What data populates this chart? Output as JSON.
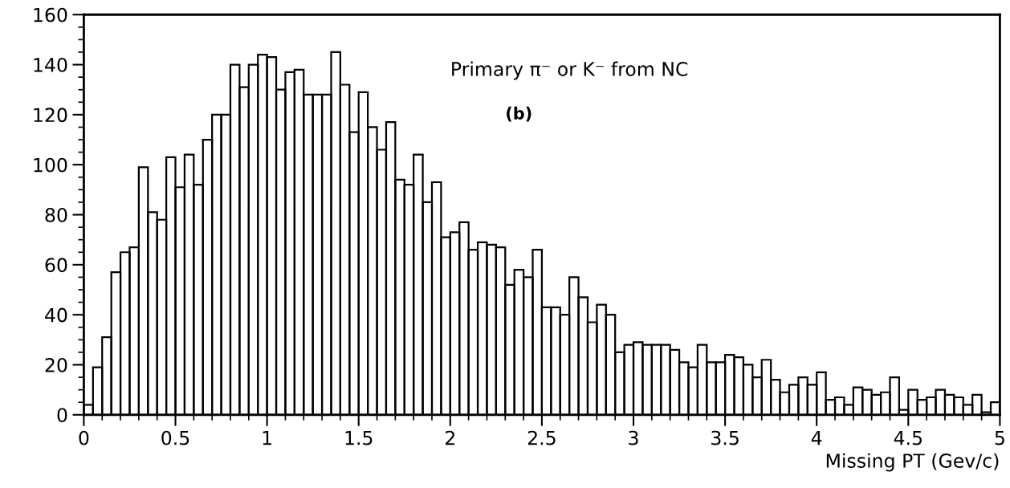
{
  "chart_data": {
    "type": "histogram",
    "xlabel": "Missing PT (Gev/c)",
    "annotations": [
      "Primary π⁻ or K⁻ from NC",
      "(b)"
    ],
    "bins": [
      0,
      0.05,
      0.1,
      0.15,
      0.2,
      0.25,
      0.3,
      0.35,
      0.4,
      0.45,
      0.5,
      0.55,
      0.6,
      0.65,
      0.7,
      0.75,
      0.8,
      0.85,
      0.9,
      0.95,
      1,
      1.05,
      1.1,
      1.15,
      1.2,
      1.25,
      1.3,
      1.35,
      1.4,
      1.45,
      1.5,
      1.55,
      1.6,
      1.65,
      1.7,
      1.75,
      1.8,
      1.85,
      1.9,
      1.95,
      2,
      2.05,
      2.1,
      2.15,
      2.2,
      2.25,
      2.3,
      2.35,
      2.4,
      2.45,
      2.5,
      2.55,
      2.6,
      2.65,
      2.7,
      2.75,
      2.8,
      2.85,
      2.9,
      2.95,
      3,
      3.05,
      3.1,
      3.15,
      3.2,
      3.25,
      3.3,
      3.35,
      3.4,
      3.45,
      3.5,
      3.55,
      3.6,
      3.65,
      3.7,
      3.75,
      3.8,
      3.85,
      3.9,
      3.95,
      4,
      4.05,
      4.1,
      4.15,
      4.2,
      4.25,
      4.3,
      4.35,
      4.4,
      4.45,
      4.5,
      4.55,
      4.6,
      4.65,
      4.7,
      4.75,
      4.8,
      4.85,
      4.9,
      4.95,
      5
    ],
    "values": [
      4,
      19,
      31,
      57,
      65,
      67,
      99,
      81,
      78,
      103,
      91,
      104,
      92,
      110,
      120,
      120,
      140,
      131,
      140,
      144,
      143,
      130,
      137,
      138,
      128,
      128,
      128,
      145,
      132,
      113,
      129,
      115,
      106,
      117,
      94,
      92,
      104,
      85,
      93,
      71,
      73,
      77,
      66,
      69,
      68,
      67,
      52,
      58,
      55,
      66,
      43,
      43,
      40,
      55,
      47,
      37,
      44,
      40,
      25,
      28,
      29,
      28,
      28,
      28,
      26,
      21,
      19,
      28,
      21,
      21,
      24,
      23,
      20,
      15,
      22,
      14,
      9,
      12,
      15,
      12,
      17,
      6,
      7,
      4,
      11,
      10,
      8,
      9,
      15,
      2,
      10,
      6,
      7,
      10,
      8,
      7,
      4,
      8,
      1,
      5
    ],
    "color": "#000000",
    "xlim": [
      0,
      5
    ],
    "ylim": [
      0,
      160
    ],
    "xticks": [
      0,
      0.5,
      1,
      1.5,
      2,
      2.5,
      3,
      3.5,
      4,
      4.5,
      5
    ],
    "yticks": [
      0,
      20,
      40,
      60,
      80,
      100,
      120,
      140,
      160
    ],
    "grid": false
  }
}
